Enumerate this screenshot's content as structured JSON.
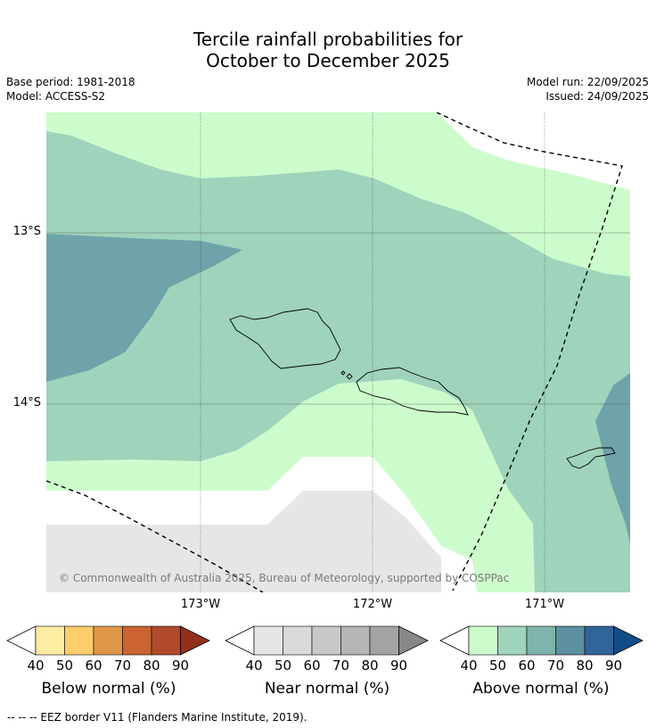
{
  "title": {
    "line1": "Tercile rainfall probabilities for",
    "line2": "October to December 2025"
  },
  "meta": {
    "base_period": "Base period: 1981-2018",
    "model": "Model: ACCESS-S2",
    "model_run": "Model run: 22/09/2025",
    "issued": "Issued: 24/09/2025"
  },
  "map": {
    "longitude_labels": [
      "173°W",
      "172°W",
      "171°W"
    ],
    "latitude_labels": [
      "13°S",
      "14°S"
    ],
    "copyright": "© Commonwealth of Australia 2025, Bureau of Meteorology, supported by COSPPac"
  },
  "colorbars": [
    {
      "name": "below",
      "title": "Below normal (%)",
      "ticks": [
        "40",
        "50",
        "60",
        "70",
        "80",
        "90"
      ],
      "colors": [
        "#fdeda2",
        "#fdcd6b",
        "#e09648",
        "#cc6332",
        "#b04a2b",
        "#92301e"
      ]
    },
    {
      "name": "near",
      "title": "Near normal (%)",
      "ticks": [
        "40",
        "50",
        "60",
        "70",
        "80",
        "90"
      ],
      "colors": [
        "#e6e6e6",
        "#d9d9d9",
        "#c8c8c8",
        "#b5b5b5",
        "#a3a3a3",
        "#888888"
      ]
    },
    {
      "name": "above",
      "title": "Above normal (%)",
      "ticks": [
        "40",
        "50",
        "60",
        "70",
        "80",
        "90"
      ],
      "colors": [
        "#ccfccc",
        "#a0d4bc",
        "#7fb4ac",
        "#5c90a0",
        "#30649a",
        "#124c88"
      ]
    }
  ],
  "legend": {
    "eez_note": "--  --  -- EEZ border V11 (Flanders Marine Institute, 2019)."
  },
  "colors": {
    "above_40": "#ccfccc",
    "above_50": "#9fd3bb",
    "above_60": "#6ea3a9",
    "near_40": "#e6e6e6",
    "white": "#ffffff"
  }
}
